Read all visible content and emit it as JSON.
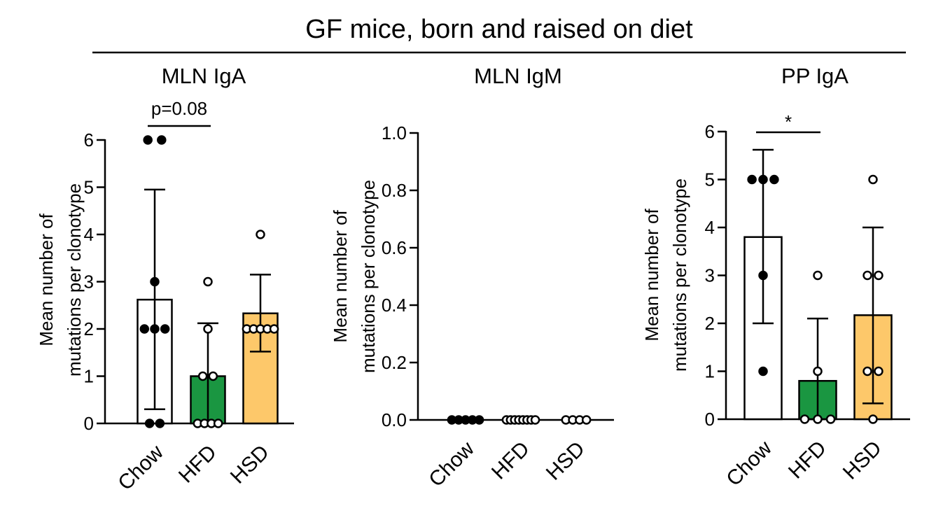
{
  "figure": {
    "title": "GF mice, born and raised on diet"
  },
  "colors": {
    "Chow": "#ffffff",
    "HFD": "#1a9641",
    "HSD": "#fdc86a",
    "filled_marker": "#000000",
    "open_marker": "#ffffff"
  },
  "chart_data": [
    {
      "type": "bar",
      "title": "MLN IgA",
      "ylabel_line1": "Mean number of",
      "ylabel_line2": "mutations per clonotype",
      "ylim": [
        0,
        6
      ],
      "yticks": [
        "0",
        "1",
        "2",
        "3",
        "4",
        "5",
        "6"
      ],
      "categories": [
        "Chow",
        "HFD",
        "HSD"
      ],
      "values": [
        2.62,
        1.0,
        2.33
      ],
      "error": [
        [
          0.3,
          4.95
        ],
        [
          0.0,
          2.12
        ],
        [
          1.52,
          3.15
        ]
      ],
      "points": [
        [
          6,
          6,
          3,
          2,
          2,
          2,
          0,
          0
        ],
        [
          3,
          2,
          1,
          1,
          0,
          0,
          0,
          0
        ],
        [
          4,
          2,
          2,
          2,
          2,
          2
        ]
      ],
      "point_offsets": [
        [
          -0.2,
          0.2,
          0,
          -0.3,
          0,
          0.3,
          -0.15,
          0.15
        ],
        [
          0,
          0,
          -0.15,
          0.15,
          -0.3,
          -0.1,
          0.1,
          0.3
        ],
        [
          0,
          -0.4,
          -0.2,
          0,
          0.2,
          0.4
        ]
      ],
      "filled": [
        true,
        false,
        false
      ],
      "significance": {
        "from": 0,
        "to": 1,
        "label": "p=0.08",
        "value": 6.3
      }
    },
    {
      "type": "bar",
      "title": "MLN IgM",
      "ylabel_line1": "Mean number of",
      "ylabel_line2": "mutations per clonotype",
      "ylim": [
        0,
        1
      ],
      "yticks": [
        "0.0",
        "0.2",
        "0.4",
        "0.6",
        "0.8",
        "1.0"
      ],
      "categories": [
        "Chow",
        "HFD",
        "HSD"
      ],
      "values": [
        0,
        0,
        0
      ],
      "error": [
        [
          0,
          0
        ],
        [
          0,
          0
        ],
        [
          0,
          0
        ]
      ],
      "points": [
        [
          0,
          0,
          0,
          0,
          0
        ],
        [
          0,
          0,
          0,
          0,
          0,
          0,
          0,
          0
        ],
        [
          0,
          0,
          0,
          0
        ]
      ],
      "point_offsets": [
        [
          -0.4,
          -0.2,
          0,
          0.2,
          0.4
        ],
        [
          -0.42,
          -0.3,
          -0.18,
          -0.06,
          0.06,
          0.18,
          0.3,
          0.42
        ],
        [
          -0.3,
          -0.1,
          0.1,
          0.3
        ]
      ],
      "filled": [
        true,
        false,
        false
      ],
      "significance": null
    },
    {
      "type": "bar",
      "title": "PP IgA",
      "ylabel_line1": "Mean number of",
      "ylabel_line2": "mutations per clonotype",
      "ylim": [
        0,
        6
      ],
      "yticks": [
        "0",
        "1",
        "2",
        "3",
        "4",
        "5",
        "6"
      ],
      "categories": [
        "Chow",
        "HFD",
        "HSD"
      ],
      "values": [
        3.8,
        0.8,
        2.17
      ],
      "error": [
        [
          2.0,
          5.62
        ],
        [
          0.0,
          2.1
        ],
        [
          0.33,
          4.0
        ]
      ],
      "points": [
        [
          5,
          5,
          5,
          3,
          1
        ],
        [
          3,
          1,
          0,
          0,
          0
        ],
        [
          5,
          3,
          3,
          1,
          1,
          0
        ]
      ],
      "point_offsets": [
        [
          -0.3,
          0,
          0.3,
          0,
          0
        ],
        [
          0,
          0,
          -0.35,
          0,
          0.35
        ],
        [
          0,
          -0.15,
          0.15,
          -0.15,
          0.15,
          0
        ]
      ],
      "filled": [
        true,
        false,
        false
      ],
      "significance": {
        "from": 0,
        "to": 1,
        "label": "*",
        "value": 6.1
      }
    }
  ]
}
